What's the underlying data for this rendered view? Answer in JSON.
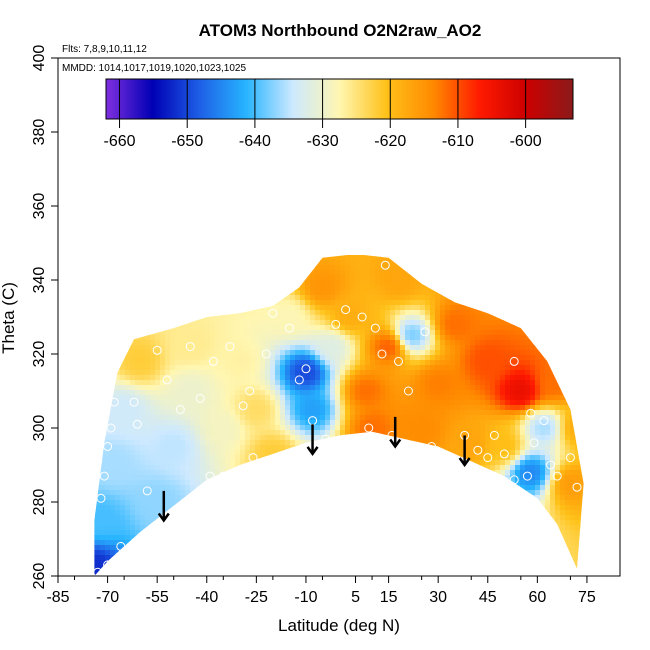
{
  "chart_data": {
    "type": "heatmap",
    "title": "ATOM3 Northbound O2N2raw_AO2",
    "flights_note": "Flts: 7,8,9,10,11,12",
    "dates_note": "MMDD: 1014,1017,1019,1020,1023,1025",
    "xlabel": "Latitude (deg N)",
    "ylabel": "Theta (C)",
    "xlim": [
      -85,
      85
    ],
    "ylim": [
      260,
      400
    ],
    "x_ticks": [
      -85,
      -70,
      -55,
      -40,
      -25,
      -10,
      5,
      15,
      30,
      45,
      60,
      75
    ],
    "y_ticks": [
      260,
      280,
      300,
      320,
      340,
      360,
      380,
      400
    ],
    "colorbar": {
      "range": [
        -662,
        -593
      ],
      "ticks": [
        -660,
        -650,
        -640,
        -630,
        -620,
        -610,
        -600
      ],
      "colors": [
        "#7f2fe0",
        "#0000b4",
        "#1e5fe6",
        "#27b4ff",
        "#cde9ff",
        "#fff6b0",
        "#ffc21a",
        "#ff8a00",
        "#ff1a00",
        "#cc0000",
        "#8b1a1a"
      ]
    },
    "coverage_boundary": {
      "bottom": [
        [
          -74,
          260
        ],
        [
          -70,
          264
        ],
        [
          -60,
          272
        ],
        [
          -50,
          279
        ],
        [
          -40,
          286
        ],
        [
          -30,
          290
        ],
        [
          -20,
          293
        ],
        [
          -10,
          296
        ],
        [
          0,
          298
        ],
        [
          10,
          299
        ],
        [
          20,
          297
        ],
        [
          30,
          295
        ],
        [
          40,
          291
        ],
        [
          50,
          287
        ],
        [
          60,
          281
        ],
        [
          66,
          274
        ],
        [
          72,
          262
        ]
      ],
      "top": [
        [
          -74,
          275
        ],
        [
          -71,
          296
        ],
        [
          -67,
          315
        ],
        [
          -62,
          324
        ],
        [
          -50,
          327
        ],
        [
          -40,
          330
        ],
        [
          -30,
          331
        ],
        [
          -20,
          333
        ],
        [
          -12,
          338
        ],
        [
          -5,
          346
        ],
        [
          5,
          347
        ],
        [
          15,
          346
        ],
        [
          25,
          339
        ],
        [
          35,
          334
        ],
        [
          45,
          331
        ],
        [
          55,
          327
        ],
        [
          63,
          318
        ],
        [
          70,
          305
        ],
        [
          74,
          285
        ]
      ]
    },
    "field_points": [
      {
        "lat": -75,
        "theta": 262,
        "value": -652
      },
      {
        "lat": -72,
        "theta": 275,
        "value": -640
      },
      {
        "lat": -68,
        "theta": 290,
        "value": -636
      },
      {
        "lat": -65,
        "theta": 305,
        "value": -634
      },
      {
        "lat": -60,
        "theta": 318,
        "value": -622
      },
      {
        "lat": -55,
        "theta": 280,
        "value": -637
      },
      {
        "lat": -50,
        "theta": 295,
        "value": -635
      },
      {
        "lat": -45,
        "theta": 310,
        "value": -630
      },
      {
        "lat": -45,
        "theta": 322,
        "value": -626
      },
      {
        "lat": -35,
        "theta": 300,
        "value": -629
      },
      {
        "lat": -30,
        "theta": 318,
        "value": -627
      },
      {
        "lat": -25,
        "theta": 305,
        "value": -624
      },
      {
        "lat": -20,
        "theta": 293,
        "value": -622
      },
      {
        "lat": -15,
        "theta": 330,
        "value": -628
      },
      {
        "lat": -10,
        "theta": 315,
        "value": -650
      },
      {
        "lat": -8,
        "theta": 305,
        "value": -643
      },
      {
        "lat": -5,
        "theta": 338,
        "value": -615
      },
      {
        "lat": -2,
        "theta": 322,
        "value": -632
      },
      {
        "lat": 3,
        "theta": 330,
        "value": -618
      },
      {
        "lat": 8,
        "theta": 310,
        "value": -612
      },
      {
        "lat": 10,
        "theta": 300,
        "value": -612
      },
      {
        "lat": 15,
        "theta": 322,
        "value": -611
      },
      {
        "lat": 18,
        "theta": 340,
        "value": -617
      },
      {
        "lat": 22,
        "theta": 325,
        "value": -638
      },
      {
        "lat": 25,
        "theta": 300,
        "value": -614
      },
      {
        "lat": 30,
        "theta": 312,
        "value": -613
      },
      {
        "lat": 35,
        "theta": 328,
        "value": -612
      },
      {
        "lat": 40,
        "theta": 296,
        "value": -617
      },
      {
        "lat": 45,
        "theta": 318,
        "value": -610
      },
      {
        "lat": 50,
        "theta": 295,
        "value": -620
      },
      {
        "lat": 55,
        "theta": 310,
        "value": -604
      },
      {
        "lat": 58,
        "theta": 288,
        "value": -645
      },
      {
        "lat": 62,
        "theta": 300,
        "value": -636
      },
      {
        "lat": 65,
        "theta": 312,
        "value": -612
      },
      {
        "lat": 70,
        "theta": 285,
        "value": -616
      },
      {
        "lat": 72,
        "theta": 300,
        "value": -618
      }
    ],
    "sample_points": [
      [
        -73,
        261
      ],
      [
        -70,
        263
      ],
      [
        -66,
        268
      ],
      [
        -72,
        281
      ],
      [
        -71,
        287
      ],
      [
        -73,
        291
      ],
      [
        -70,
        295
      ],
      [
        -69,
        300
      ],
      [
        -71,
        305
      ],
      [
        -68,
        307
      ],
      [
        -58,
        283
      ],
      [
        -61,
        301
      ],
      [
        -62,
        307
      ],
      [
        -55,
        321
      ],
      [
        -52,
        313
      ],
      [
        -48,
        305
      ],
      [
        -45,
        322
      ],
      [
        -42,
        308
      ],
      [
        -39,
        287
      ],
      [
        -38,
        318
      ],
      [
        -35,
        287
      ],
      [
        -33,
        322
      ],
      [
        -29,
        306
      ],
      [
        -27,
        310
      ],
      [
        -26,
        292
      ],
      [
        -22,
        320
      ],
      [
        -20,
        331
      ],
      [
        -15,
        327
      ],
      [
        -12,
        313
      ],
      [
        -10,
        316
      ],
      [
        -8,
        302
      ],
      [
        -4,
        297
      ],
      [
        -1,
        328
      ],
      [
        2,
        332
      ],
      [
        7,
        330
      ],
      [
        9,
        300
      ],
      [
        11,
        327
      ],
      [
        14,
        344
      ],
      [
        13,
        320
      ],
      [
        16,
        298
      ],
      [
        18,
        318
      ],
      [
        21,
        310
      ],
      [
        26,
        326
      ],
      [
        28,
        295
      ],
      [
        33,
        340
      ],
      [
        38,
        298
      ],
      [
        42,
        294
      ],
      [
        45,
        292
      ],
      [
        47,
        298
      ],
      [
        50,
        293
      ],
      [
        53,
        286
      ],
      [
        57,
        287
      ],
      [
        59,
        296
      ],
      [
        62,
        302
      ],
      [
        64,
        290
      ],
      [
        66,
        287
      ],
      [
        70,
        292
      ],
      [
        72,
        284
      ],
      [
        60,
        270
      ],
      [
        65,
        265
      ],
      [
        58,
        304
      ],
      [
        53,
        318
      ]
    ],
    "arrows": [
      {
        "lat": -53,
        "theta_from": 283,
        "theta_to": 275
      },
      {
        "lat": -8,
        "theta_from": 301,
        "theta_to": 293
      },
      {
        "lat": 17,
        "theta_from": 303,
        "theta_to": 295
      },
      {
        "lat": 38,
        "theta_from": 298,
        "theta_to": 290
      }
    ]
  }
}
